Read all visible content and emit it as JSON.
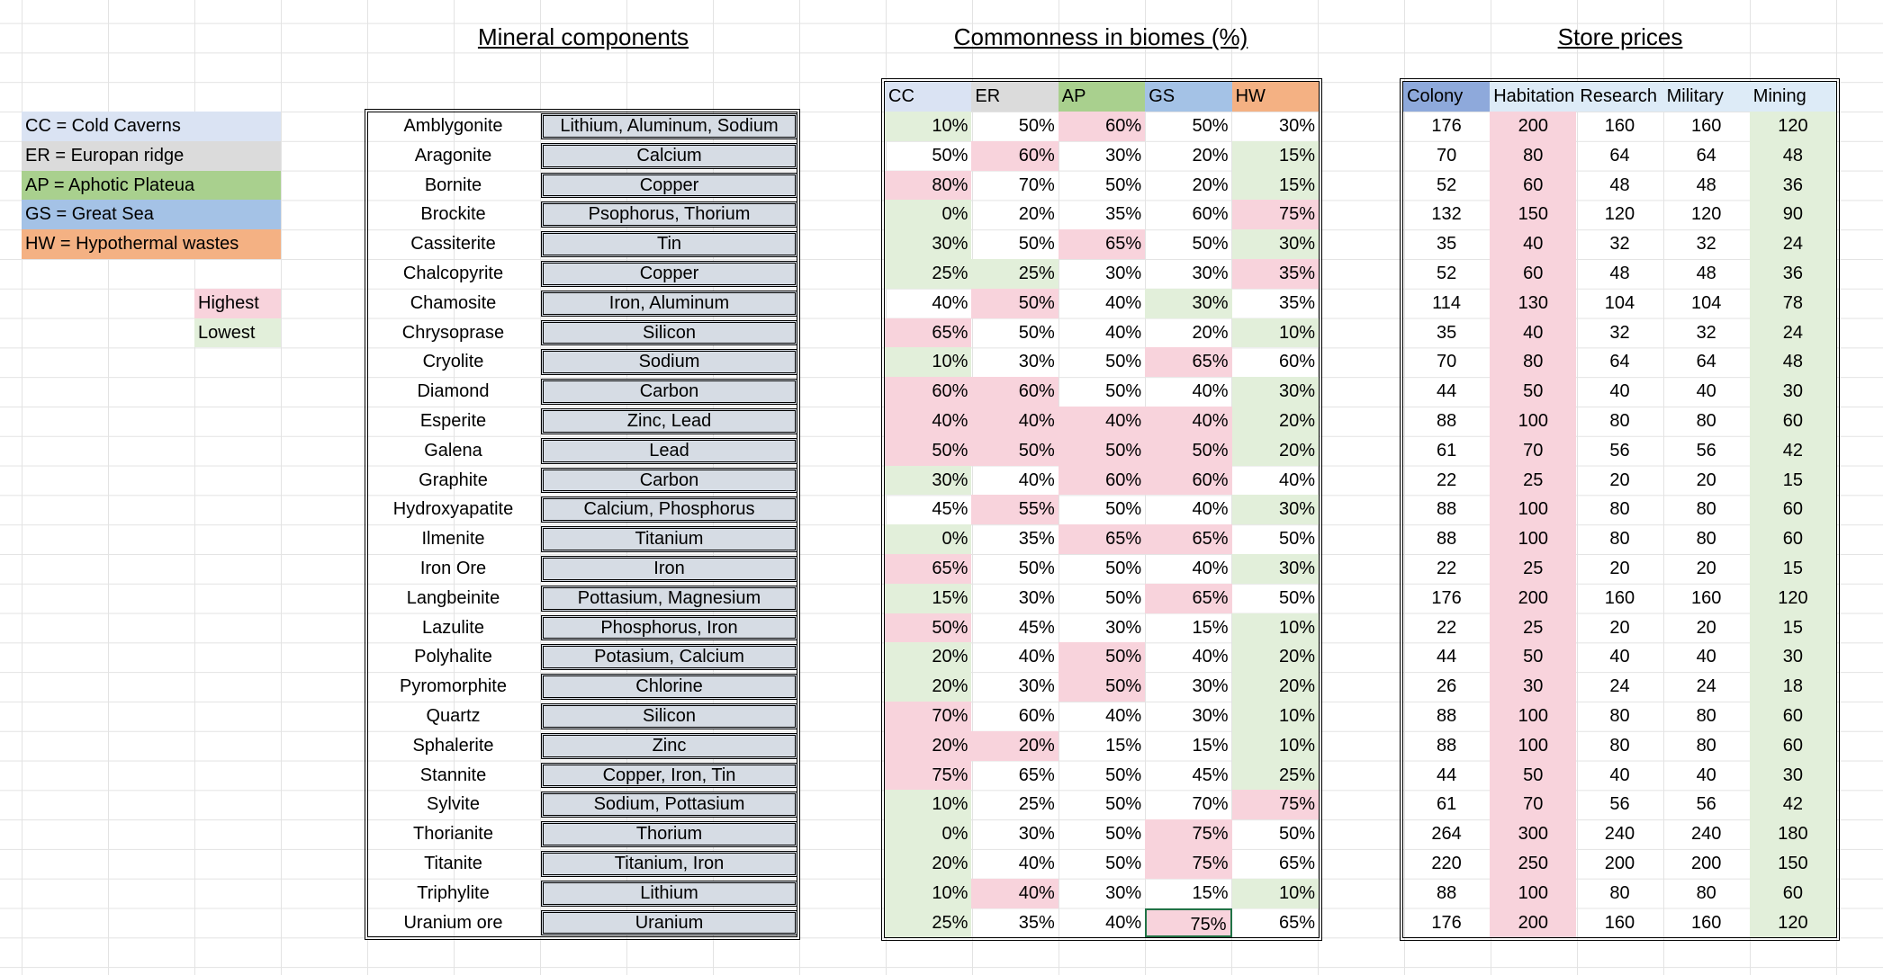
{
  "titles": {
    "minerals": "Mineral components",
    "biomes": "Commonness in biomes (%)",
    "prices": "Store prices"
  },
  "legend": {
    "biomes": [
      {
        "label": "CC = Cold Caverns",
        "color": "#dae3f3"
      },
      {
        "label": "ER = Europan ridge",
        "color": "#dbdbdb"
      },
      {
        "label": "AP = Aphotic Plateua",
        "color": "#a9d08e"
      },
      {
        "label": "GS = Great Sea",
        "color": "#a4c2e6"
      },
      {
        "label": "HW = Hypothermal wastes",
        "color": "#f4b183"
      }
    ],
    "highest": {
      "label": "Highest",
      "color": "#f8d3dc"
    },
    "lowest": {
      "label": "Lowest",
      "color": "#e2efda"
    }
  },
  "biome_headers": [
    {
      "label": "CC",
      "color": "#dae3f3"
    },
    {
      "label": "ER",
      "color": "#dbdbdb"
    },
    {
      "label": "AP",
      "color": "#a9d08e"
    },
    {
      "label": "GS",
      "color": "#a4c2e6"
    },
    {
      "label": "HW",
      "color": "#f4b183"
    }
  ],
  "price_headers": [
    {
      "label": "Colony",
      "color": "#8ea9db"
    },
    {
      "label": "Habitation",
      "color": "#ddebf7"
    },
    {
      "label": "Research",
      "color": "#ddebf7"
    },
    {
      "label": "Military",
      "color": "#ddebf7"
    },
    {
      "label": "Mining",
      "color": "#ddebf7"
    }
  ],
  "minerals": [
    {
      "name": "Amblygonite",
      "components": "Lithium, Aluminum, Sodium",
      "commonness": [
        "10%",
        "50%",
        "60%",
        "50%",
        "30%"
      ],
      "prices": [
        176,
        200,
        160,
        160,
        120
      ]
    },
    {
      "name": "Aragonite",
      "components": "Calcium",
      "commonness": [
        "50%",
        "60%",
        "30%",
        "20%",
        "15%"
      ],
      "prices": [
        70,
        80,
        64,
        64,
        48
      ]
    },
    {
      "name": "Bornite",
      "components": "Copper",
      "commonness": [
        "80%",
        "70%",
        "50%",
        "20%",
        "15%"
      ],
      "prices": [
        52,
        60,
        48,
        48,
        36
      ]
    },
    {
      "name": "Brockite",
      "components": "Psophorus, Thorium",
      "commonness": [
        "0%",
        "20%",
        "35%",
        "60%",
        "75%"
      ],
      "prices": [
        132,
        150,
        120,
        120,
        90
      ]
    },
    {
      "name": "Cassiterite",
      "components": "Tin",
      "commonness": [
        "30%",
        "50%",
        "65%",
        "50%",
        "30%"
      ],
      "prices": [
        35,
        40,
        32,
        32,
        24
      ]
    },
    {
      "name": "Chalcopyrite",
      "components": "Copper",
      "commonness": [
        "25%",
        "25%",
        "30%",
        "30%",
        "35%"
      ],
      "prices": [
        52,
        60,
        48,
        48,
        36
      ]
    },
    {
      "name": "Chamosite",
      "components": "Iron, Aluminum",
      "commonness": [
        "40%",
        "50%",
        "40%",
        "30%",
        "35%"
      ],
      "prices": [
        114,
        130,
        104,
        104,
        78
      ]
    },
    {
      "name": "Chrysoprase",
      "components": "Silicon",
      "commonness": [
        "65%",
        "50%",
        "40%",
        "20%",
        "10%"
      ],
      "prices": [
        35,
        40,
        32,
        32,
        24
      ]
    },
    {
      "name": "Cryolite",
      "components": "Sodium",
      "commonness": [
        "10%",
        "30%",
        "50%",
        "65%",
        "60%"
      ],
      "prices": [
        70,
        80,
        64,
        64,
        48
      ]
    },
    {
      "name": "Diamond",
      "components": "Carbon",
      "commonness": [
        "60%",
        "60%",
        "50%",
        "40%",
        "30%"
      ],
      "prices": [
        44,
        50,
        40,
        40,
        30
      ]
    },
    {
      "name": "Esperite",
      "components": "Zinc, Lead",
      "commonness": [
        "40%",
        "40%",
        "40%",
        "40%",
        "20%"
      ],
      "prices": [
        88,
        100,
        80,
        80,
        60
      ]
    },
    {
      "name": "Galena",
      "components": "Lead",
      "commonness": [
        "50%",
        "50%",
        "50%",
        "50%",
        "20%"
      ],
      "prices": [
        61,
        70,
        56,
        56,
        42
      ]
    },
    {
      "name": "Graphite",
      "components": "Carbon",
      "commonness": [
        "30%",
        "40%",
        "60%",
        "60%",
        "40%"
      ],
      "prices": [
        22,
        25,
        20,
        20,
        15
      ]
    },
    {
      "name": "Hydroxyapatite",
      "components": "Calcium, Phosphorus",
      "commonness": [
        "45%",
        "55%",
        "50%",
        "40%",
        "30%"
      ],
      "prices": [
        88,
        100,
        80,
        80,
        60
      ]
    },
    {
      "name": "Ilmenite",
      "components": "Titanium",
      "commonness": [
        "0%",
        "35%",
        "65%",
        "65%",
        "50%"
      ],
      "prices": [
        88,
        100,
        80,
        80,
        60
      ]
    },
    {
      "name": "Iron Ore",
      "components": "Iron",
      "commonness": [
        "65%",
        "50%",
        "50%",
        "40%",
        "30%"
      ],
      "prices": [
        22,
        25,
        20,
        20,
        15
      ]
    },
    {
      "name": "Langbeinite",
      "components": "Pottasium, Magnesium",
      "commonness": [
        "15%",
        "30%",
        "50%",
        "65%",
        "50%"
      ],
      "prices": [
        176,
        200,
        160,
        160,
        120
      ]
    },
    {
      "name": "Lazulite",
      "components": "Phosphorus, Iron",
      "commonness": [
        "50%",
        "45%",
        "30%",
        "15%",
        "10%"
      ],
      "prices": [
        22,
        25,
        20,
        20,
        15
      ]
    },
    {
      "name": "Polyhalite",
      "components": "Potasium, Calcium",
      "commonness": [
        "20%",
        "40%",
        "50%",
        "40%",
        "20%"
      ],
      "prices": [
        44,
        50,
        40,
        40,
        30
      ]
    },
    {
      "name": "Pyromorphite",
      "components": "Chlorine",
      "commonness": [
        "20%",
        "30%",
        "50%",
        "30%",
        "20%"
      ],
      "prices": [
        26,
        30,
        24,
        24,
        18
      ]
    },
    {
      "name": "Quartz",
      "components": "Silicon",
      "commonness": [
        "70%",
        "60%",
        "40%",
        "30%",
        "10%"
      ],
      "prices": [
        88,
        100,
        80,
        80,
        60
      ]
    },
    {
      "name": "Sphalerite",
      "components": "Zinc",
      "commonness": [
        "20%",
        "20%",
        "15%",
        "15%",
        "10%"
      ],
      "prices": [
        88,
        100,
        80,
        80,
        60
      ]
    },
    {
      "name": "Stannite",
      "components": "Copper, Iron, Tin",
      "commonness": [
        "75%",
        "65%",
        "50%",
        "45%",
        "25%"
      ],
      "prices": [
        44,
        50,
        40,
        40,
        30
      ]
    },
    {
      "name": "Sylvite",
      "components": "Sodium, Pottasium",
      "commonness": [
        "10%",
        "25%",
        "50%",
        "70%",
        "75%"
      ],
      "prices": [
        61,
        70,
        56,
        56,
        42
      ]
    },
    {
      "name": "Thorianite",
      "components": "Thorium",
      "commonness": [
        "0%",
        "30%",
        "50%",
        "75%",
        "50%"
      ],
      "prices": [
        264,
        300,
        240,
        240,
        180
      ]
    },
    {
      "name": "Titanite",
      "components": "Titanium, Iron",
      "commonness": [
        "20%",
        "40%",
        "50%",
        "75%",
        "65%"
      ],
      "prices": [
        220,
        250,
        200,
        200,
        150
      ]
    },
    {
      "name": "Triphylite",
      "components": "Lithium",
      "commonness": [
        "10%",
        "40%",
        "30%",
        "15%",
        "10%"
      ],
      "prices": [
        88,
        100,
        80,
        80,
        60
      ]
    },
    {
      "name": "Uranium ore",
      "components": "Uranium",
      "commonness": [
        "25%",
        "35%",
        "40%",
        "75%",
        "65%"
      ],
      "prices": [
        176,
        200,
        160,
        160,
        120
      ]
    }
  ]
}
